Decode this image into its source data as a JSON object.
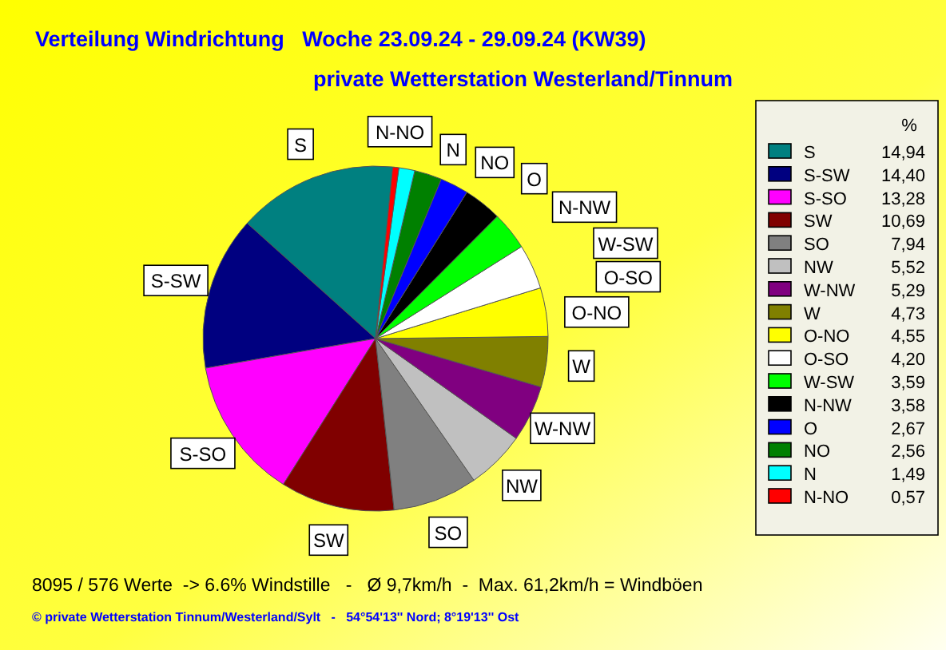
{
  "chart_data": {
    "type": "pie",
    "title": "Verteilung Windrichtung   Woche 23.09.24 - 29.09.24 (KW39)",
    "subtitle": "private Wetterstation Westerland/Tinnum",
    "legend_title": "%",
    "categories": [
      "S",
      "S-SW",
      "S-SO",
      "SW",
      "SO",
      "NW",
      "W-NW",
      "W",
      "O-NO",
      "O-SO",
      "W-SW",
      "N-NW",
      "O",
      "NO",
      "N",
      "N-NO"
    ],
    "values": [
      14.94,
      14.4,
      13.28,
      10.69,
      7.94,
      5.52,
      5.29,
      4.73,
      4.55,
      4.2,
      3.59,
      3.58,
      2.67,
      2.56,
      1.49,
      0.57
    ],
    "value_labels": [
      "14,94",
      "14,40",
      "13,28",
      "10,69",
      "7,94",
      "5,52",
      "5,29",
      "4,73",
      "4,55",
      "4,20",
      "3,59",
      "3,58",
      "2,67",
      "2,56",
      "1,49",
      "0,57"
    ],
    "colors": [
      "#008080",
      "#000080",
      "#ff00ff",
      "#800000",
      "#808080",
      "#c0c0c0",
      "#800080",
      "#808000",
      "#ffff00",
      "#ffffff",
      "#00ff00",
      "#000000",
      "#0000ff",
      "#008000",
      "#00ffff",
      "#ff0000"
    ],
    "legend": "right",
    "annotations": [
      "8095 / 576 Werte  -> 6.6% Windstille   -   Ø 9,7km/h  -  Max. 61,2km/h = Windböen",
      "© private Wetterstation Tinnum/Westerland/Sylt   -   54°54'13'' Nord; 8°19'13'' Ost"
    ]
  }
}
